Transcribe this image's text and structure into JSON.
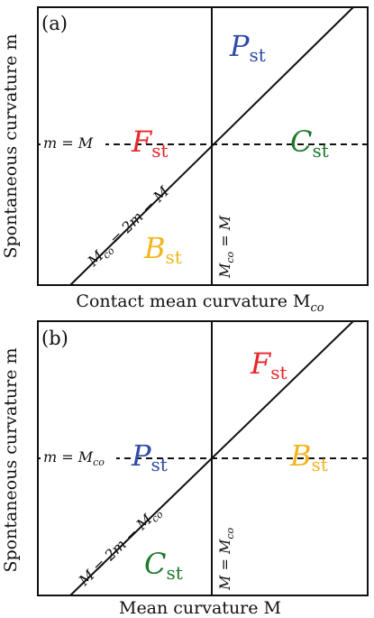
{
  "colors": {
    "red": "#e8252a",
    "blue": "#2f4aa8",
    "green": "#1f7a2a",
    "yellow": "#f2b51d",
    "black": "#111111"
  },
  "panels": [
    {
      "tag": "(a)",
      "y_label": "Spontaneous curvature m",
      "x_label": "Contact mean curvature M",
      "x_label_sub": "co",
      "dashed_label": "m = M",
      "diagonal_label": "M",
      "diagonal_label_sub": "co",
      "diagonal_label_tail": " = 2m − M",
      "vertical_label": "M",
      "vertical_label_sub": "co",
      "vertical_label_tail": " = M",
      "regions": [
        {
          "main": "P",
          "sub": "st",
          "color": "blue"
        },
        {
          "main": "F",
          "sub": "st",
          "color": "red"
        },
        {
          "main": "C",
          "sub": "st",
          "color": "green"
        },
        {
          "main": "B",
          "sub": "st",
          "color": "yellow"
        }
      ]
    },
    {
      "tag": "(b)",
      "y_label": "Spontaneous curvature m",
      "x_label": "Mean curvature M",
      "dashed_label": "m = M",
      "dashed_label_sub": "co",
      "diagonal_label": "M = 2m − M",
      "diagonal_label_sub": "co",
      "vertical_label": "M = M",
      "vertical_label_sub": "co",
      "regions": [
        {
          "main": "F",
          "sub": "st",
          "color": "red"
        },
        {
          "main": "P",
          "sub": "st",
          "color": "blue"
        },
        {
          "main": "B",
          "sub": "st",
          "color": "yellow"
        },
        {
          "main": "C",
          "sub": "st",
          "color": "green"
        }
      ]
    }
  ]
}
